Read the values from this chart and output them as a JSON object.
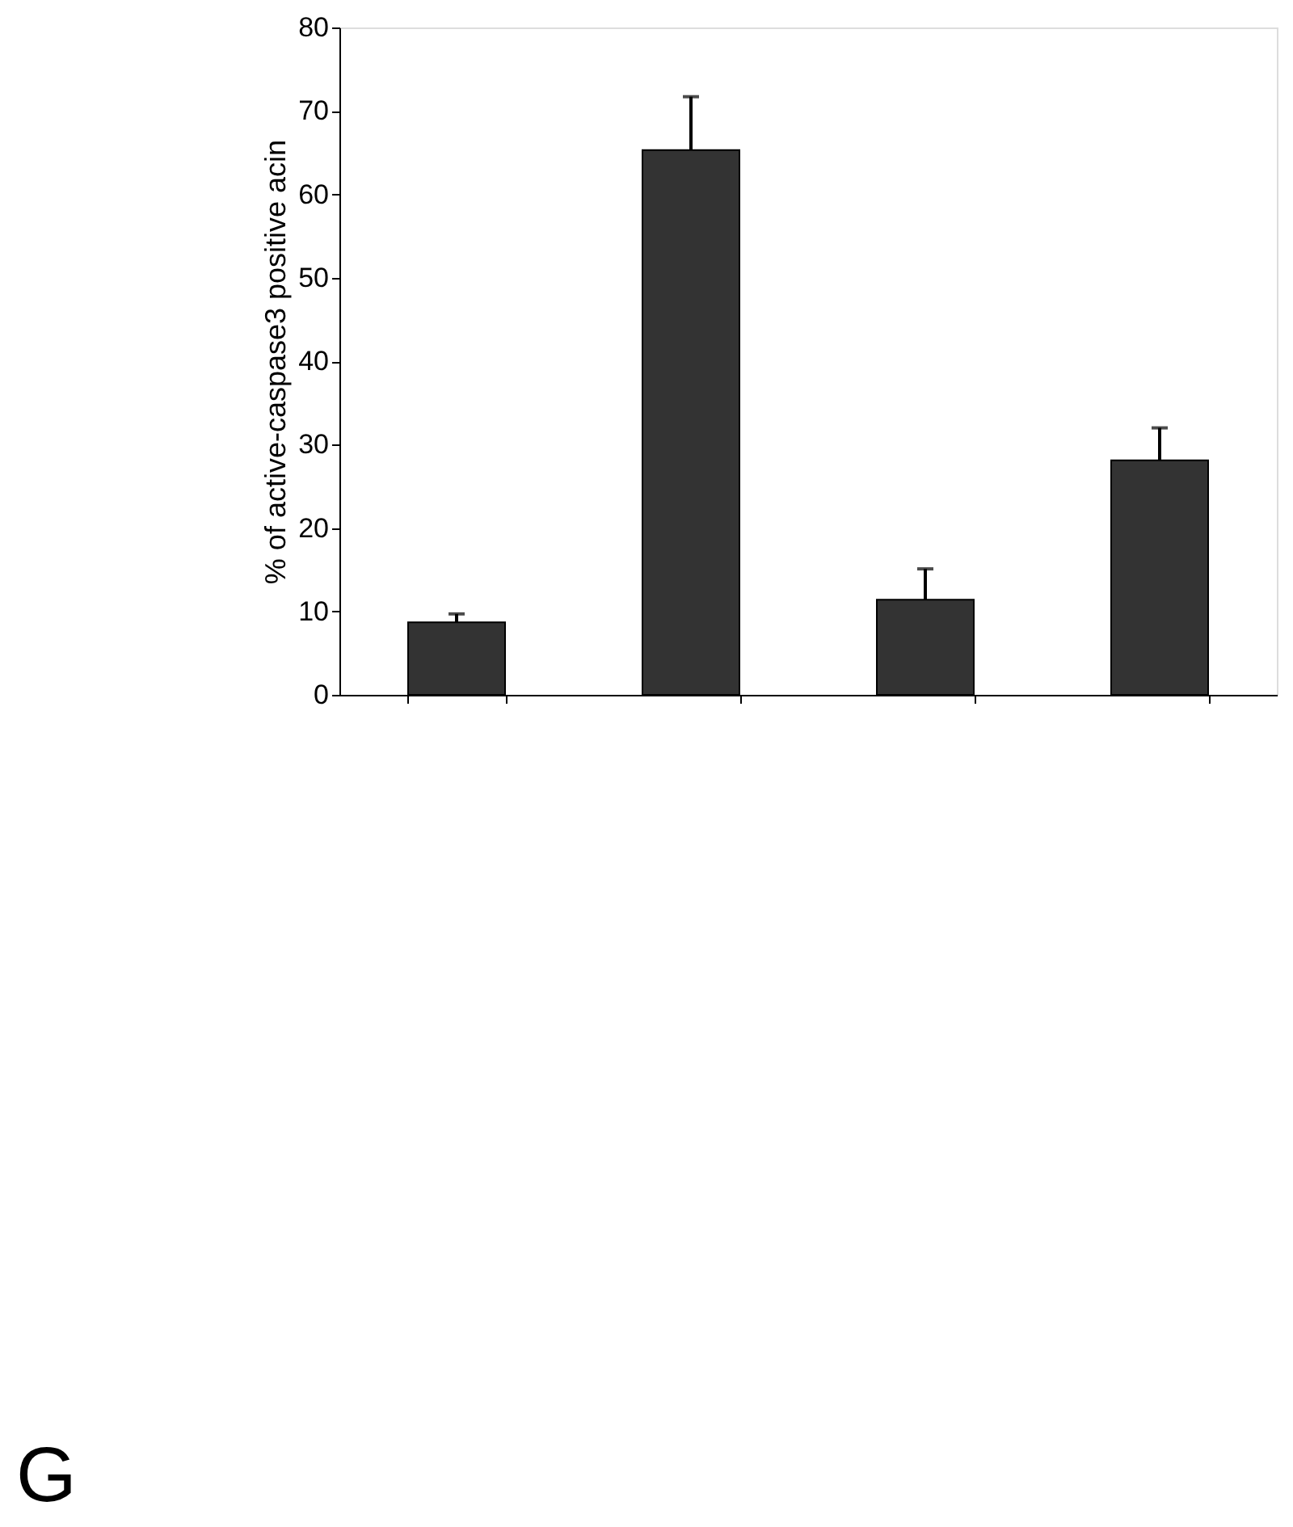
{
  "chart_data": {
    "type": "bar",
    "ylabel": "% of active-caspase3 positive acin",
    "categories": [
      null,
      null,
      null,
      null
    ],
    "values": [
      8.7,
      65.3,
      11.4,
      28.1
    ],
    "errors": [
      [
        8.7,
        9.7
      ],
      [
        65.3,
        71.7
      ],
      [
        11.4,
        15.1
      ],
      [
        28.1,
        32.0
      ]
    ],
    "color": "#333333",
    "ylim": [
      0,
      80
    ],
    "yticks": [
      0,
      10,
      20,
      30,
      40,
      50,
      60,
      70,
      80
    ],
    "grid": false,
    "annotations": [
      "G"
    ]
  }
}
